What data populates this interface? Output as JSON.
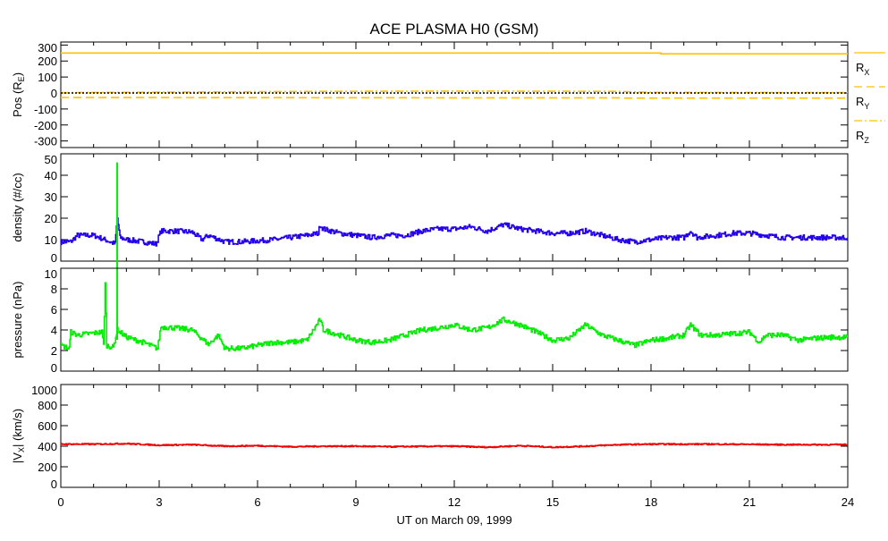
{
  "chart_data": {
    "type": "line",
    "title": "ACE PLASMA H0 (GSM)",
    "xlabel": "UT on March 09, 1999",
    "xlim": [
      0,
      24
    ],
    "xticks": [
      "0",
      "3",
      "6",
      "9",
      "12",
      "15",
      "18",
      "21",
      "24"
    ],
    "panels": [
      {
        "id": "pos",
        "ylabel": "Pos (R",
        "ylabel_sub": "E",
        "ylabel_end": ")",
        "ylim": [
          -330,
          330
        ],
        "yticks": [
          -300,
          -200,
          -100,
          0,
          100,
          200,
          300
        ],
        "ytick_labels": [
          "-300",
          "-200",
          "-100",
          "0",
          "100",
          "200",
          "300"
        ],
        "series": [
          {
            "name": "R",
            "sub": "X",
            "color": "#ffc000",
            "style": "solid",
            "x": [
              0,
              18.3,
              18.3,
              24
            ],
            "y": [
              250,
              250,
              245,
              245
            ]
          },
          {
            "name": "R",
            "sub": "Y",
            "color": "#ffc000",
            "style": "dashed",
            "x": [
              0,
              6,
              12,
              17,
              17.1,
              24
            ],
            "y": [
              -28,
              -29,
              -30,
              -30,
              -32,
              -32
            ]
          },
          {
            "name": "R",
            "sub": "Z",
            "color": "#ffc000",
            "style": "dashdot",
            "x": [
              0,
              4,
              8,
              12,
              17,
              18,
              24
            ],
            "y": [
              2,
              6,
              10,
              12,
              10,
              4,
              2
            ]
          },
          {
            "name": "zero",
            "color": "#000000",
            "style": "dotted",
            "x": [
              0,
              24
            ],
            "y": [
              0,
              0
            ]
          }
        ]
      },
      {
        "id": "density",
        "ylabel": "density (#/cc)",
        "ylim": [
          0,
          50
        ],
        "yticks": [
          0,
          10,
          20,
          30,
          40,
          50
        ],
        "ytick_labels": [
          "0",
          "10",
          "20",
          "30",
          "40",
          "50"
        ],
        "series": [
          {
            "name": "density",
            "color": "#2200ee",
            "x": [
              0,
              0.3,
              0.5,
              1,
              1.5,
              1.65,
              1.72,
              1.8,
              2,
              2.5,
              2.9,
              3.05,
              3.5,
              4,
              4.3,
              4.5,
              5,
              5.5,
              6,
              6.5,
              7,
              7.5,
              7.85,
              7.9,
              8,
              8.5,
              9,
              9.5,
              10,
              10.5,
              11,
              11.5,
              12,
              12.5,
              13,
              13.5,
              14,
              14.5,
              15,
              15.5,
              16,
              16.5,
              17,
              17.5,
              18,
              18.5,
              19,
              19.2,
              19.4,
              20,
              20.5,
              21,
              21.5,
              22,
              22.5,
              23,
              23.5,
              24
            ],
            "y": [
              9,
              9,
              12,
              12,
              9,
              8,
              20,
              11,
              10,
              9,
              8,
              14,
              14,
              13.5,
              10,
              12,
              9,
              9,
              9.5,
              10,
              11,
              12,
              13,
              17,
              15,
              13,
              12,
              11,
              12,
              12,
              14,
              15,
              15,
              16,
              14,
              17,
              15,
              14,
              13,
              13,
              14,
              12,
              10,
              9,
              10,
              11,
              11,
              14,
              11,
              12,
              13,
              13,
              12,
              11,
              11,
              11,
              11,
              11
            ]
          },
          {
            "name": "spike",
            "color": "#00ee00",
            "x": [
              1.72,
              1.72
            ],
            "y": [
              0,
              46
            ]
          }
        ]
      },
      {
        "id": "pressure",
        "ylabel": "pressure (nPa)",
        "ylim": [
          0,
          10
        ],
        "yticks": [
          0,
          2,
          4,
          6,
          8,
          10
        ],
        "ytick_labels": [
          "0",
          "2",
          "4",
          "6",
          "8",
          "10"
        ],
        "series": [
          {
            "name": "pressure",
            "color": "#00ee00",
            "x": [
              0,
              0.25,
              0.3,
              0.5,
              1,
              1.25,
              1.3,
              1.35,
              1.4,
              1.6,
              1.72,
              2,
              2.5,
              2.95,
              3.05,
              3.5,
              4,
              4.5,
              4.8,
              5,
              5.5,
              6,
              6.5,
              7,
              7.5,
              7.9,
              8,
              8.5,
              9,
              9.5,
              10,
              10.5,
              11,
              11.5,
              12,
              12.5,
              13,
              13.5,
              14,
              14.5,
              15,
              15.5,
              16,
              16.5,
              17,
              17.5,
              18,
              18.5,
              19,
              19.2,
              19.5,
              20,
              21,
              21.3,
              21.5,
              22,
              22.5,
              23,
              23.5,
              24
            ],
            "y": [
              2.5,
              2.2,
              3.8,
              3.5,
              3.7,
              3.8,
              2.5,
              8.5,
              2.5,
              2.3,
              4.0,
              3.3,
              2.8,
              2.2,
              4.3,
              4.2,
              4.0,
              2.6,
              3.5,
              2.2,
              2.2,
              2.5,
              2.8,
              2.8,
              3.0,
              5.0,
              4.0,
              3.5,
              3.0,
              2.8,
              3.0,
              3.5,
              4.0,
              4.2,
              4.5,
              4.0,
              4.2,
              5.0,
              4.5,
              3.8,
              3.0,
              3.2,
              4.5,
              3.5,
              3.0,
              2.5,
              3.0,
              3.2,
              3.5,
              4.5,
              3.5,
              3.5,
              3.8,
              2.8,
              3.5,
              3.5,
              3.0,
              3.2,
              3.3,
              3.3
            ]
          }
        ]
      },
      {
        "id": "vx",
        "ylabel": "|V",
        "ylabel_sub": "X",
        "ylabel_end": "| (km/s)",
        "ylim": [
          0,
          1000
        ],
        "yticks": [
          0,
          200,
          400,
          600,
          800,
          1000
        ],
        "ytick_labels": [
          "0",
          "200",
          "400",
          "600",
          "800",
          "1000"
        ],
        "series": [
          {
            "name": "vx",
            "color": "#ee0000",
            "x": [
              0,
              1,
              2,
              3,
              4,
              5,
              6,
              7,
              8,
              9,
              10,
              11,
              12,
              13,
              14,
              15,
              16,
              17,
              18,
              19,
              20,
              21,
              22,
              23,
              24
            ],
            "y": [
              420,
              420,
              425,
              410,
              415,
              400,
              405,
              395,
              400,
              400,
              395,
              398,
              400,
              390,
              405,
              390,
              400,
              415,
              420,
              420,
              420,
              418,
              415,
              415,
              415
            ]
          }
        ]
      }
    ]
  }
}
